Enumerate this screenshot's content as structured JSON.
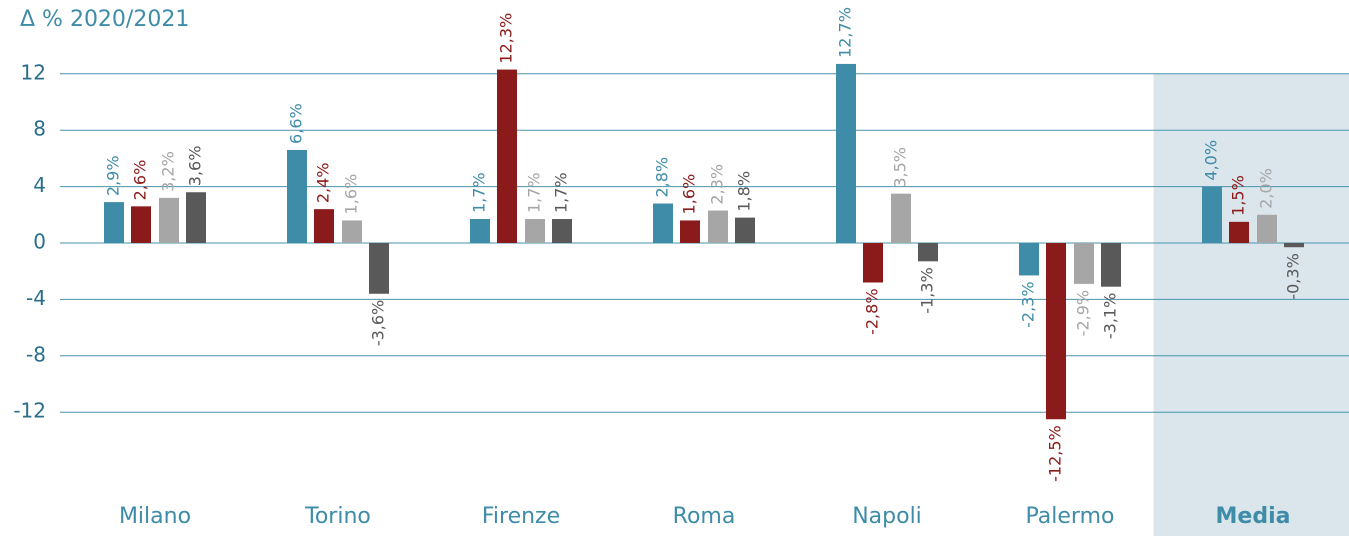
{
  "chart_data": {
    "type": "bar",
    "ylabel": "Δ % 2020/2021",
    "categories": [
      "Milano",
      "Torino",
      "Firenze",
      "Roma",
      "Napoli",
      "Palermo",
      "Media"
    ],
    "highlight_category": 6,
    "series": [
      {
        "color": "#3e8ca8",
        "values": [
          2.9,
          6.6,
          1.7,
          2.8,
          12.7,
          -2.3,
          4.0
        ],
        "value_labels": [
          "2,9%",
          "6,6%",
          "1,7%",
          "2,8%",
          "12,7%",
          "-2,3%",
          "4,0%"
        ]
      },
      {
        "color": "#8b1a1a",
        "values": [
          2.6,
          2.4,
          12.3,
          1.6,
          -2.8,
          -12.5,
          1.5
        ],
        "value_labels": [
          "2,6%",
          "2,4%",
          "12,3%",
          "1,6%",
          "-2,8%",
          "-12,5%",
          "1,5%"
        ]
      },
      {
        "color": "#a6a6a6",
        "values": [
          3.2,
          1.6,
          1.7,
          2.3,
          3.5,
          -2.9,
          2.0
        ],
        "value_labels": [
          "3,2%",
          "1,6%",
          "1,7%",
          "2,3%",
          "3,5%",
          "-2,9%",
          "2,0%"
        ]
      },
      {
        "color": "#595959",
        "values": [
          3.6,
          -3.6,
          1.7,
          1.8,
          -1.3,
          -3.1,
          -0.3
        ],
        "value_labels": [
          "3,6%",
          "-3,6%",
          "1,7%",
          "1,8%",
          "-1,3%",
          "-3,1%",
          "-0,3%"
        ]
      }
    ],
    "ylim": [
      -16,
      16
    ],
    "yticks": [
      -12,
      -8,
      -4,
      0,
      4,
      8,
      12
    ],
    "grid": true
  }
}
